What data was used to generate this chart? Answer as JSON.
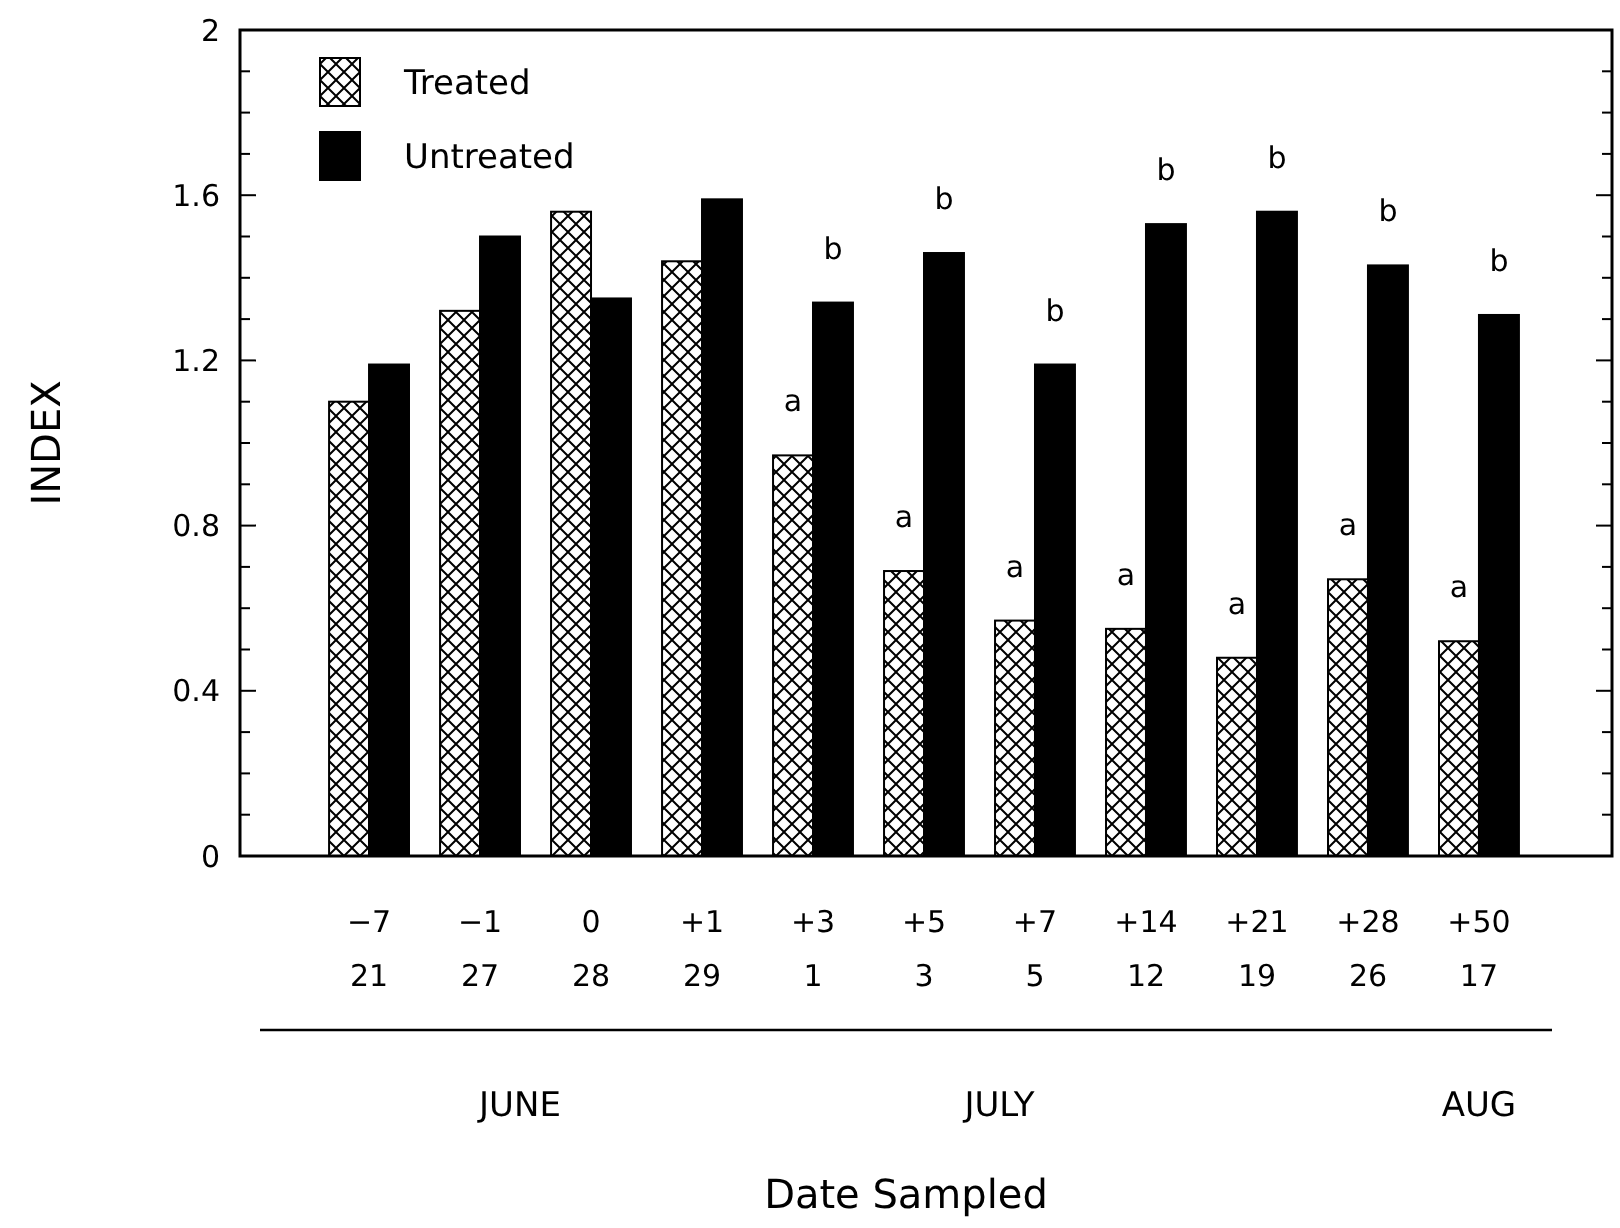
{
  "chart_data": {
    "type": "bar",
    "xlabel": "Date Sampled",
    "ylabel": "INDEX",
    "categories": [
      "−7\n21",
      "−1\n27",
      "0\n28",
      "+1\n29",
      "+3\n1",
      "+5\n3",
      "+7\n5",
      "+14\n12",
      "+21\n19",
      "+28\n26",
      "+50\n17"
    ],
    "series": [
      {
        "name": "Treated",
        "color": "#000000",
        "values": [
          1.1,
          1.32,
          1.56,
          1.44,
          0.97,
          0.69,
          0.57,
          0.55,
          0.48,
          0.67,
          0.52
        ]
      },
      {
        "name": "Untreated",
        "color": "#000000",
        "values": [
          1.19,
          1.5,
          1.35,
          1.59,
          1.34,
          1.46,
          1.19,
          1.53,
          1.56,
          1.43,
          1.31
        ]
      }
    ],
    "ylim": [
      0,
      2
    ],
    "yticks": [
      0,
      {
        "value": 0.1,
        "label": null
      },
      {
        "value": 0.2,
        "label": null
      },
      {
        "value": 0.3,
        "label": null
      },
      0.4,
      {
        "value": 0.5,
        "label": null
      },
      {
        "value": 0.6,
        "label": null
      },
      {
        "value": 0.7,
        "label": null
      },
      0.8,
      {
        "value": 0.9,
        "label": null
      },
      {
        "value": 1.0,
        "label": null
      },
      {
        "value": 1.1,
        "label": null
      },
      1.2,
      {
        "value": 1.3,
        "label": null
      },
      {
        "value": 1.4,
        "label": null
      },
      {
        "value": 1.5,
        "label": null
      },
      1.6,
      {
        "value": 1.7,
        "label": null
      },
      {
        "value": 1.8,
        "label": null
      },
      {
        "value": 1.9,
        "label": null
      },
      2
    ],
    "legend": "top left",
    "grid": false,
    "annotations": [
      {
        "text": "a",
        "x": "+3\n1",
        "y": 0.97
      },
      {
        "text": "b",
        "x": "+3\n1",
        "y": 1.34
      },
      {
        "text": "a",
        "x": "+5\n3",
        "y": 0.69
      },
      {
        "text": "b",
        "x": "+5\n3",
        "y": 1.46
      },
      {
        "text": "a",
        "x": "+7\n5",
        "y": 0.57
      },
      {
        "text": "b",
        "x": "+7\n5",
        "y": 1.19
      },
      {
        "text": "a",
        "x": "+14\n12",
        "y": 0.55
      },
      {
        "text": "b",
        "x": "+14\n12",
        "y": 1.53
      },
      {
        "text": "a",
        "x": "+21\n19",
        "y": 0.48
      },
      {
        "text": "b",
        "x": "+21\n19",
        "y": 1.56
      },
      {
        "text": "a",
        "x": "+28\n26",
        "y": 0.67
      },
      {
        "text": "b",
        "x": "+28\n26",
        "y": 1.43
      },
      {
        "text": "a",
        "x": "+50\n17",
        "y": 0.52
      },
      {
        "text": "b",
        "x": "+50\n17",
        "y": 1.31
      },
      "JUNE",
      "JULY",
      "AUG"
    ]
  }
}
